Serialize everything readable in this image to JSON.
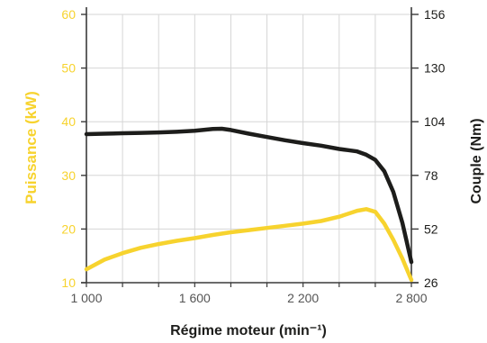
{
  "chart_data": {
    "type": "line",
    "title": "",
    "xlabel": "Régime moteur (min⁻¹)",
    "ylabel_left": "Puissance (kW)",
    "ylabel_right": "Couple (Nm)",
    "x_ticks": [
      "1 000",
      "1 600",
      "2 200",
      "2 800"
    ],
    "y_left_ticks": [
      "10",
      "20",
      "30",
      "40",
      "50",
      "60"
    ],
    "y_right_ticks": [
      "26",
      "52",
      "78",
      "104",
      "130",
      "156"
    ],
    "xlim": [
      1000,
      2800
    ],
    "ylim_left": [
      10,
      60
    ],
    "ylim_right": [
      26,
      156
    ],
    "grid": true,
    "colors": {
      "power": "#F7D32E",
      "torque": "#1d1d1b",
      "axis": "#3a3a3a",
      "grid": "#d6d6d6",
      "left_axis_text": "#F7D32E",
      "text": "#1d1d1b"
    },
    "series": [
      {
        "name": "Puissance",
        "axis": "left",
        "x": [
          1000,
          1100,
          1200,
          1300,
          1400,
          1500,
          1600,
          1700,
          1800,
          1900,
          2000,
          2100,
          2200,
          2300,
          2400,
          2500,
          2550,
          2600,
          2650,
          2700,
          2750,
          2800
        ],
        "y": [
          12.5,
          14.3,
          15.5,
          16.5,
          17.2,
          17.8,
          18.3,
          18.9,
          19.4,
          19.8,
          20.2,
          20.6,
          21.0,
          21.5,
          22.3,
          23.4,
          23.7,
          23.2,
          21.0,
          18.0,
          14.5,
          10.5
        ]
      },
      {
        "name": "Couple",
        "axis": "right",
        "x": [
          1000,
          1100,
          1200,
          1300,
          1400,
          1500,
          1600,
          1700,
          1750,
          1800,
          1900,
          2000,
          2100,
          2200,
          2300,
          2400,
          2450,
          2500,
          2550,
          2600,
          2650,
          2700,
          2750,
          2800
        ],
        "y": [
          98,
          98.2,
          98.4,
          98.6,
          98.8,
          99.1,
          99.6,
          100.5,
          100.6,
          100,
          98.2,
          96.6,
          95,
          93.6,
          92.4,
          90.8,
          90.2,
          89.6,
          88.0,
          85.5,
          80.0,
          70.0,
          55.0,
          36.0
        ]
      }
    ]
  }
}
